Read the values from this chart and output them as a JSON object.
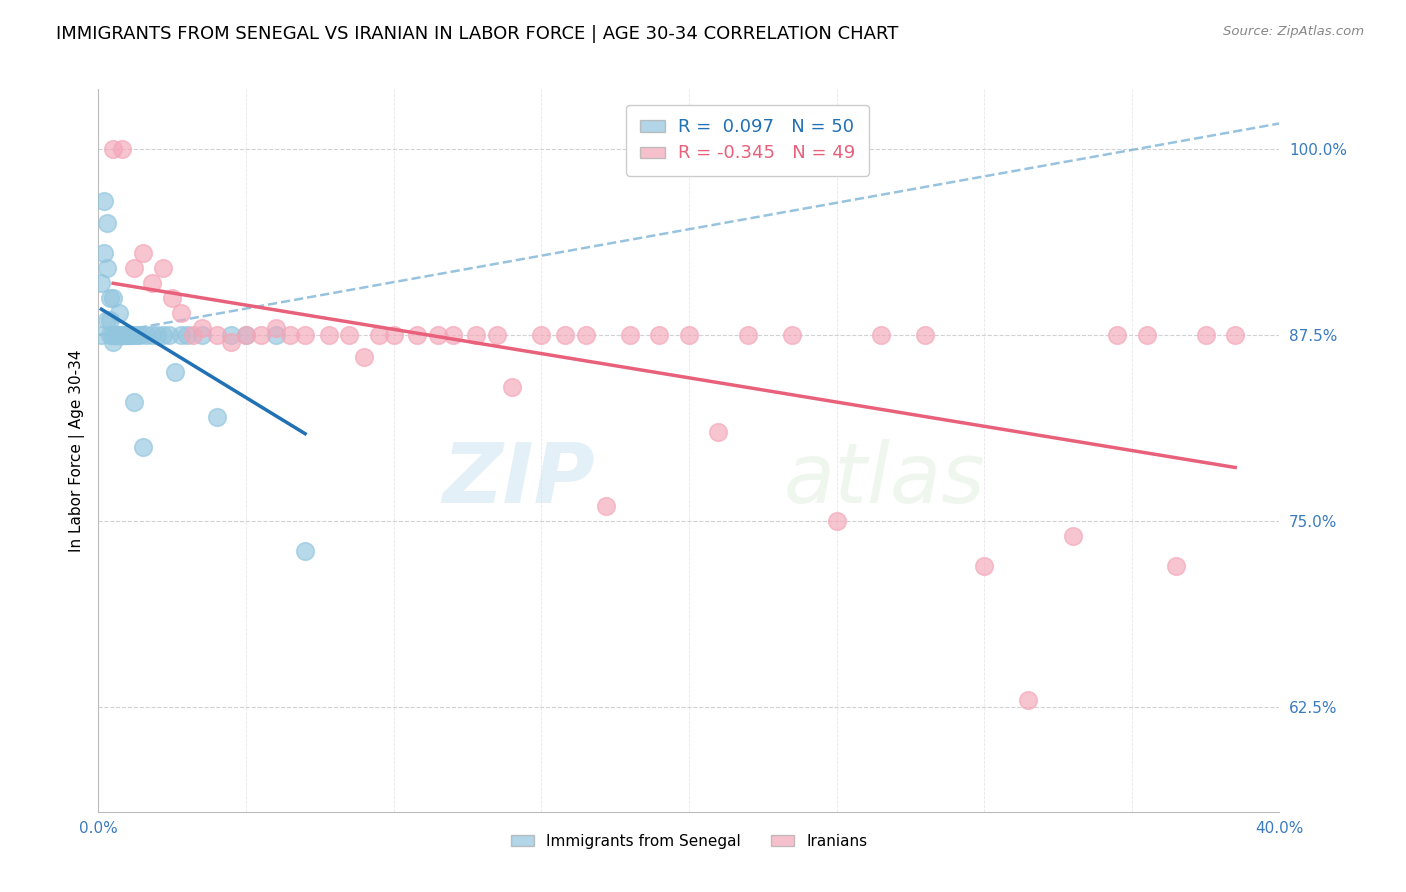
{
  "title": "IMMIGRANTS FROM SENEGAL VS IRANIAN IN LABOR FORCE | AGE 30-34 CORRELATION CHART",
  "source": "Source: ZipAtlas.com",
  "ylabel": "In Labor Force | Age 30-34",
  "xlim": [
    0.0,
    0.4
  ],
  "ylim": [
    0.555,
    1.04
  ],
  "yticks": [
    0.625,
    0.75,
    0.875,
    1.0
  ],
  "ytick_labels": [
    "62.5%",
    "75.0%",
    "87.5%",
    "100.0%"
  ],
  "xticks": [
    0.0,
    0.05,
    0.1,
    0.15,
    0.2,
    0.25,
    0.3,
    0.35,
    0.4
  ],
  "xtick_labels": [
    "0.0%",
    "",
    "",
    "",
    "",
    "",
    "",
    "",
    "40.0%"
  ],
  "senegal_color": "#92c5de",
  "iranian_color": "#f4a6b8",
  "trendline_senegal_color": "#2171b5",
  "trendline_senegal_dash_color": "#74afd3",
  "trendline_iranian_color": "#e8607a",
  "R_senegal": 0.097,
  "N_senegal": 50,
  "R_iranian": -0.345,
  "N_iranian": 49,
  "watermark_zip": "ZIP",
  "watermark_atlas": "atlas",
  "title_fontsize": 13,
  "axis_label_fontsize": 11,
  "tick_fontsize": 11,
  "legend_fontsize": 12,
  "senegal_x": [
    0.001,
    0.001,
    0.002,
    0.002,
    0.003,
    0.003,
    0.003,
    0.004,
    0.004,
    0.004,
    0.005,
    0.005,
    0.005,
    0.005,
    0.006,
    0.006,
    0.006,
    0.007,
    0.007,
    0.007,
    0.007,
    0.008,
    0.008,
    0.008,
    0.009,
    0.009,
    0.009,
    0.01,
    0.01,
    0.011,
    0.011,
    0.012,
    0.012,
    0.013,
    0.014,
    0.015,
    0.016,
    0.018,
    0.02,
    0.022,
    0.024,
    0.026,
    0.028,
    0.03,
    0.035,
    0.04,
    0.045,
    0.05,
    0.06,
    0.07
  ],
  "senegal_y": [
    0.875,
    0.91,
    0.965,
    0.93,
    0.95,
    0.92,
    0.885,
    0.9,
    0.885,
    0.875,
    0.9,
    0.875,
    0.875,
    0.87,
    0.875,
    0.875,
    0.875,
    0.89,
    0.875,
    0.875,
    0.875,
    0.875,
    0.875,
    0.875,
    0.875,
    0.875,
    0.875,
    0.875,
    0.875,
    0.875,
    0.875,
    0.875,
    0.83,
    0.875,
    0.875,
    0.8,
    0.875,
    0.875,
    0.875,
    0.875,
    0.875,
    0.85,
    0.875,
    0.875,
    0.875,
    0.82,
    0.875,
    0.875,
    0.875,
    0.73
  ],
  "iranian_x": [
    0.005,
    0.008,
    0.012,
    0.015,
    0.018,
    0.022,
    0.025,
    0.028,
    0.032,
    0.035,
    0.04,
    0.045,
    0.05,
    0.055,
    0.06,
    0.065,
    0.07,
    0.078,
    0.085,
    0.09,
    0.095,
    0.1,
    0.108,
    0.115,
    0.12,
    0.128,
    0.135,
    0.14,
    0.15,
    0.158,
    0.165,
    0.172,
    0.18,
    0.19,
    0.2,
    0.21,
    0.22,
    0.235,
    0.25,
    0.265,
    0.28,
    0.3,
    0.315,
    0.33,
    0.345,
    0.355,
    0.365,
    0.375,
    0.385
  ],
  "iranian_y": [
    1.0,
    1.0,
    0.92,
    0.93,
    0.91,
    0.92,
    0.9,
    0.89,
    0.875,
    0.88,
    0.875,
    0.87,
    0.875,
    0.875,
    0.88,
    0.875,
    0.875,
    0.875,
    0.875,
    0.86,
    0.875,
    0.875,
    0.875,
    0.875,
    0.875,
    0.875,
    0.875,
    0.84,
    0.875,
    0.875,
    0.875,
    0.76,
    0.875,
    0.875,
    0.875,
    0.81,
    0.875,
    0.875,
    0.75,
    0.875,
    0.875,
    0.72,
    0.63,
    0.74,
    0.875,
    0.875,
    0.72,
    0.875,
    0.875
  ]
}
